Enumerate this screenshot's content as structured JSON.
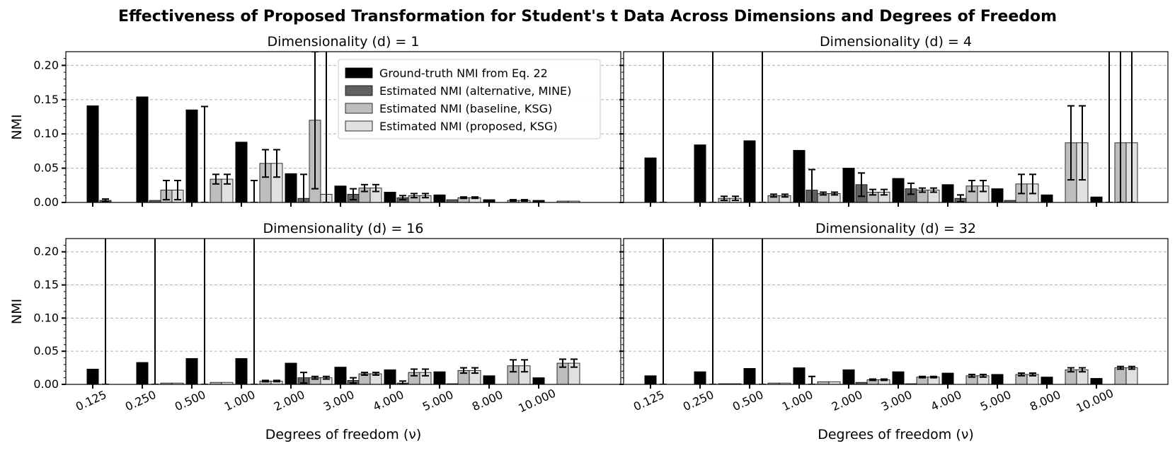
{
  "figure_title": "Effectiveness of Proposed Transformation for Student's t Data Across Dimensions and Degrees of Freedom",
  "chart_data": {
    "type": "bar",
    "xlabel": "Degrees of freedom (ν)",
    "ylabel": "NMI",
    "ylim": [
      0,
      0.22
    ],
    "yticks": [
      "0.00",
      "0.05",
      "0.10",
      "0.15",
      "0.20"
    ],
    "categories": [
      "0.125",
      "0.250",
      "0.500",
      "1.000",
      "2.000",
      "3.000",
      "4.000",
      "5.000",
      "8.000",
      "10.000"
    ],
    "grid": "horizontal dashed",
    "legend_location": "upper right (first panel)",
    "series_names": [
      "Ground-truth NMI from Eq. 22",
      "Estimated NMI (alternative, MINE)",
      "Estimated NMI (baseline, KSG)",
      "Estimated NMI (proposed, KSG)"
    ],
    "series_colors": [
      "#000000",
      "#606060",
      "#bdbdbd",
      "#e0e0e0"
    ],
    "panels": [
      {
        "title": "Dimensionality (d) = 1",
        "ground_truth": [
          0.141,
          0.154,
          0.135,
          0.088,
          0.042,
          0.024,
          0.015,
          0.011,
          0.004,
          0.003
        ],
        "mine": [
          0.003,
          0.003,
          0.0,
          0.0,
          0.006,
          0.012,
          0.007,
          0.004,
          0.0,
          0.0
        ],
        "mine_err": [
          0.002,
          0.0,
          0.14,
          0.032,
          0.035,
          0.008,
          0.003,
          0.0,
          0.0,
          0.0
        ],
        "baseline": [
          0.0,
          0.018,
          0.034,
          0.057,
          0.12,
          0.021,
          0.01,
          0.007,
          0.003,
          0.002
        ],
        "baseline_err": [
          0.0,
          0.014,
          0.007,
          0.02,
          0.1,
          0.005,
          0.003,
          0.001,
          0.001,
          0.0
        ],
        "proposed": [
          0.0,
          0.018,
          0.034,
          0.057,
          0.012,
          0.021,
          0.01,
          0.007,
          0.003,
          0.002
        ],
        "proposed_err": [
          0.0,
          0.014,
          0.007,
          0.02,
          0.3,
          0.005,
          0.003,
          0.001,
          0.001,
          0.0
        ]
      },
      {
        "title": "Dimensionality (d) = 4",
        "ground_truth": [
          0.065,
          0.084,
          0.09,
          0.076,
          0.05,
          0.035,
          0.026,
          0.02,
          0.011,
          0.008
        ],
        "mine": [
          0.0,
          0.0,
          0.0,
          0.018,
          0.026,
          0.02,
          0.006,
          0.003,
          0.0,
          0.0
        ],
        "mine_err": [
          0.5,
          0.5,
          0.5,
          0.03,
          0.017,
          0.008,
          0.005,
          0.0,
          0.0,
          0.5
        ],
        "baseline": [
          0.0,
          0.006,
          0.01,
          0.013,
          0.015,
          0.018,
          0.024,
          0.027,
          0.087,
          0.087
        ],
        "baseline_err": [
          0.0,
          0.003,
          0.002,
          0.002,
          0.004,
          0.003,
          0.008,
          0.014,
          0.054,
          0.5
        ],
        "proposed": [
          0.0,
          0.006,
          0.01,
          0.013,
          0.015,
          0.018,
          0.024,
          0.027,
          0.087,
          0.087
        ],
        "proposed_err": [
          0.0,
          0.003,
          0.002,
          0.002,
          0.004,
          0.003,
          0.008,
          0.014,
          0.054,
          0.5
        ]
      },
      {
        "title": "Dimensionality (d) = 16",
        "ground_truth": [
          0.023,
          0.033,
          0.039,
          0.039,
          0.032,
          0.026,
          0.022,
          0.019,
          0.013,
          0.01
        ],
        "mine": [
          0.0,
          0.0,
          0.0,
          0.0,
          0.01,
          0.006,
          0.002,
          0.001,
          0.0,
          0.0
        ],
        "mine_err": [
          0.5,
          0.5,
          0.5,
          0.5,
          0.008,
          0.004,
          0.003,
          0.0,
          0.0,
          0.0
        ],
        "baseline": [
          0.0,
          0.002,
          0.003,
          0.005,
          0.01,
          0.016,
          0.018,
          0.021,
          0.028,
          0.032
        ],
        "baseline_err": [
          0.0,
          0.0,
          0.0,
          0.001,
          0.002,
          0.002,
          0.005,
          0.004,
          0.009,
          0.006
        ],
        "proposed": [
          0.0,
          0.002,
          0.003,
          0.005,
          0.01,
          0.016,
          0.018,
          0.021,
          0.028,
          0.032
        ],
        "proposed_err": [
          0.0,
          0.0,
          0.0,
          0.001,
          0.002,
          0.002,
          0.005,
          0.004,
          0.009,
          0.006
        ]
      },
      {
        "title": "Dimensionality (d) = 32",
        "ground_truth": [
          0.013,
          0.019,
          0.024,
          0.025,
          0.022,
          0.019,
          0.017,
          0.015,
          0.011,
          0.009
        ],
        "mine": [
          0.0,
          0.0,
          0.0,
          0.0,
          0.003,
          0.001,
          0.0,
          0.0,
          0.0,
          0.0
        ],
        "mine_err": [
          0.5,
          0.5,
          0.5,
          0.012,
          0.0,
          0.0,
          0.0,
          0.0,
          0.0,
          0.0
        ],
        "baseline": [
          0.0,
          0.001,
          0.002,
          0.004,
          0.007,
          0.011,
          0.013,
          0.015,
          0.022,
          0.025
        ],
        "baseline_err": [
          0.0,
          0.0,
          0.0,
          0.0,
          0.001,
          0.001,
          0.002,
          0.002,
          0.003,
          0.002
        ],
        "proposed": [
          0.0,
          0.001,
          0.002,
          0.004,
          0.007,
          0.011,
          0.013,
          0.015,
          0.022,
          0.025
        ],
        "proposed_err": [
          0.0,
          0.0,
          0.0,
          0.0,
          0.001,
          0.001,
          0.002,
          0.002,
          0.003,
          0.002
        ]
      }
    ]
  }
}
